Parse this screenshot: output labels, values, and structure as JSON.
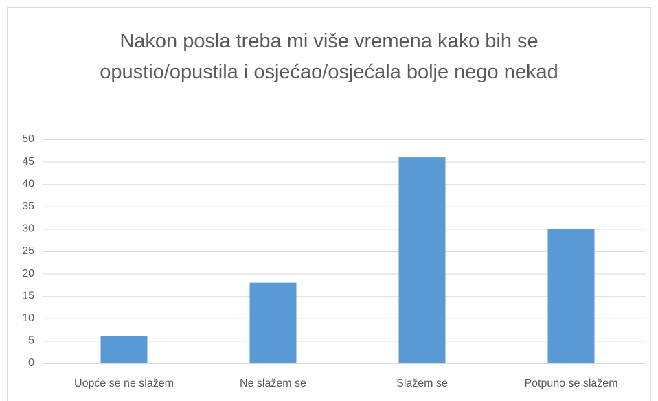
{
  "chart_data": {
    "type": "bar",
    "title": "Nakon posla treba mi više vremena kako bih se opustio/opustila i osjećao/osjećala bolje nego nekad",
    "categories": [
      "Uopće se ne slažem",
      "Ne slažem se",
      "Slažem se",
      "Potpuno se slažem"
    ],
    "values": [
      6,
      18,
      46,
      30
    ],
    "color": "#5b9bd5",
    "ylim": [
      0,
      50
    ],
    "yticks": [
      0,
      5,
      10,
      15,
      20,
      25,
      30,
      35,
      40,
      45,
      50
    ],
    "grid": true
  }
}
